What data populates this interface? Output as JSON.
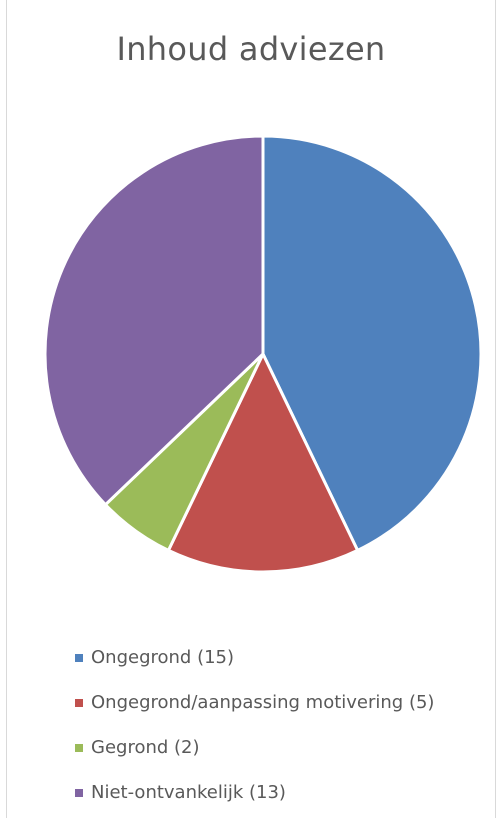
{
  "chart_data": {
    "type": "pie",
    "title": "Inhoud adviezen",
    "categories": [
      "Ongegrond (15)",
      "Ongegrond/aanpassing motivering (5)",
      "Gegrond (2)",
      "Niet-ontvankelijk (13)"
    ],
    "values": [
      15,
      5,
      2,
      13
    ],
    "colors": [
      "#4f81bd",
      "#c0504d",
      "#9bbb59",
      "#8064a2"
    ],
    "legend_position": "bottom"
  }
}
